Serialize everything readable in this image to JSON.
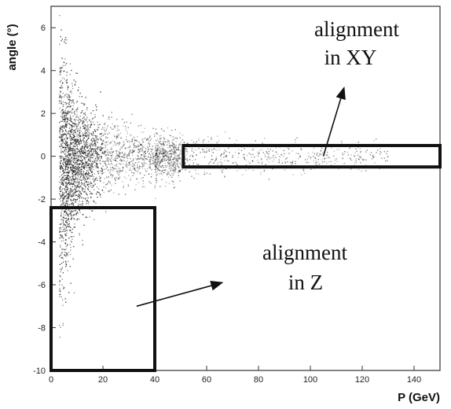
{
  "chart_data": {
    "type": "scatter",
    "xlabel": "P (GeV)",
    "ylabel": "angle (°)",
    "xlim": [
      0,
      150
    ],
    "ylim": [
      -10,
      7
    ],
    "xticks": [
      "0",
      "20",
      "40",
      "60",
      "80",
      "100",
      "120",
      "140"
    ],
    "yticks": [
      "-10",
      "-8",
      "-6",
      "-4",
      "-2",
      "0",
      "2",
      "4",
      "6"
    ],
    "points_summary": "dense cloud of tracks, narrowing around angle 0 as P increases; broad spread near P ≈ 5–15 GeV",
    "regions": [
      {
        "name": "alignment in XY",
        "label_lines": [
          "alignment",
          "in XY"
        ],
        "x_range": [
          51,
          150
        ],
        "y_range": [
          -0.5,
          0.5
        ]
      },
      {
        "name": "alignment in Z",
        "label_lines": [
          "alignment",
          "in Z"
        ],
        "x_range": [
          0,
          40
        ],
        "y_range": [
          -10,
          -2.4
        ]
      }
    ],
    "arrows": [
      {
        "from": [
          105,
          0
        ],
        "to": [
          113,
          3.2
        ]
      },
      {
        "from": [
          33,
          -7.0
        ],
        "to": [
          66,
          -5.9
        ]
      }
    ]
  }
}
